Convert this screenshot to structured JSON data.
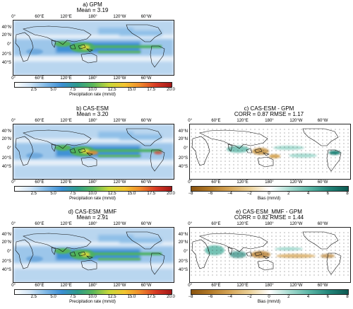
{
  "panels": {
    "a": {
      "title": "a) GPM",
      "subtitle": "Mean = 3.19"
    },
    "b": {
      "title": "b) CAS-ESM",
      "subtitle": "Mean = 3.20"
    },
    "c": {
      "title": "c) CAS-ESM - GPM",
      "subtitle": "CORR = 0.87    RMSE = 1.17"
    },
    "d": {
      "title": "d) CAS-ESM_MMF",
      "subtitle": "Mean = 2.91"
    },
    "e": {
      "title": "e) CAS-ESM_MMF - GPM",
      "subtitle": "CORR = 0.82    RMSE = 1.44"
    }
  },
  "lon_ticks": [
    "0°",
    "60°E",
    "120°E",
    "180°",
    "120°W",
    "60°W"
  ],
  "lat_ticks": [
    "40°N",
    "20°N",
    "0°",
    "20°S",
    "40°S"
  ],
  "precip_colorbar": {
    "label": "Precipitation rate (mm/d)",
    "ticks": [
      "2.5",
      "5.0",
      "7.5",
      "10.0",
      "12.5",
      "15.0",
      "17.5",
      "20.0"
    ],
    "colors": [
      "#ffffff",
      "#cfe4f6",
      "#7fb8e6",
      "#3b8fd4",
      "#2f9c8a",
      "#5cb85a",
      "#c6d83a",
      "#f3c531",
      "#ef8a2c",
      "#d73a25",
      "#a31818"
    ]
  },
  "bias_colorbar": {
    "label": "Bias (mm/d)",
    "ticks": [
      "−8",
      "−6",
      "−4",
      "−2",
      "0",
      "2",
      "4",
      "6",
      "8"
    ],
    "colors": [
      "#8a5410",
      "#b57c2a",
      "#d6a75a",
      "#ecd29a",
      "#ffffff",
      "#a8dcd1",
      "#5cb7a7",
      "#23867a",
      "#0c5a52"
    ]
  }
}
